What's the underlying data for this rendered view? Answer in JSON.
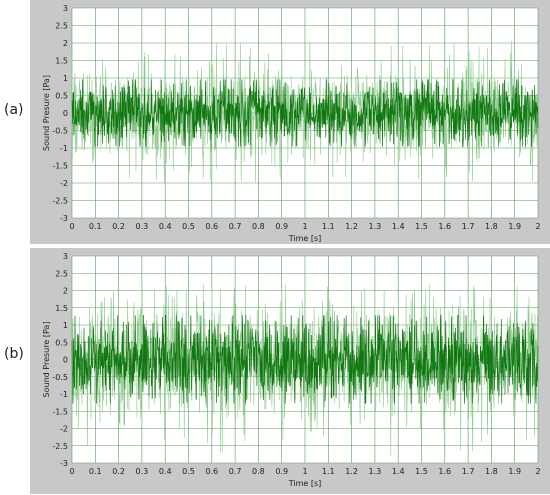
{
  "panels": [
    {
      "label": "(a)"
    },
    {
      "label": "(b)"
    }
  ],
  "colors": {
    "frame": "#c8c8c8",
    "plot_bg": "#ffffff",
    "grid": "#5a9c5a",
    "signal_light": "#8cc88c",
    "signal_dark": "#117711"
  },
  "chart_data": [
    {
      "type": "line",
      "title": "",
      "xlabel": "Time [s]",
      "ylabel": "Sound Presure  [Pa]",
      "xlim": [
        0,
        2
      ],
      "ylim": [
        -3,
        3
      ],
      "x_ticks": [
        0,
        0.1,
        0.2,
        0.3,
        0.4,
        0.5,
        0.6,
        0.7,
        0.8,
        0.9,
        1,
        1.1,
        1.2,
        1.3,
        1.4,
        1.5,
        1.6,
        1.7,
        1.8,
        1.9,
        2
      ],
      "y_ticks": [
        -3,
        -2.5,
        -2,
        -1.5,
        -1,
        -0.5,
        0,
        0.5,
        1,
        1.5,
        2,
        2.5,
        3
      ],
      "grid": true,
      "signal": {
        "core_amplitude": 0.6,
        "peak_max": 2.1,
        "peak_min": -2.0
      }
    },
    {
      "type": "line",
      "title": "",
      "xlabel": "Time [s]",
      "ylabel": "Sound Presure  [Pa]",
      "xlim": [
        0,
        2
      ],
      "ylim": [
        -3,
        3
      ],
      "x_ticks": [
        0,
        0.1,
        0.2,
        0.3,
        0.4,
        0.5,
        0.6,
        0.7,
        0.8,
        0.9,
        1,
        1.1,
        1.2,
        1.3,
        1.4,
        1.5,
        1.6,
        1.7,
        1.8,
        1.9,
        2
      ],
      "y_ticks": [
        -3,
        -2.5,
        -2,
        -1.5,
        -1,
        -0.5,
        0,
        0.5,
        1,
        1.5,
        2,
        2.5,
        3
      ],
      "grid": true,
      "signal": {
        "core_amplitude": 0.8,
        "peak_max": 2.2,
        "peak_min": -2.8
      }
    }
  ]
}
